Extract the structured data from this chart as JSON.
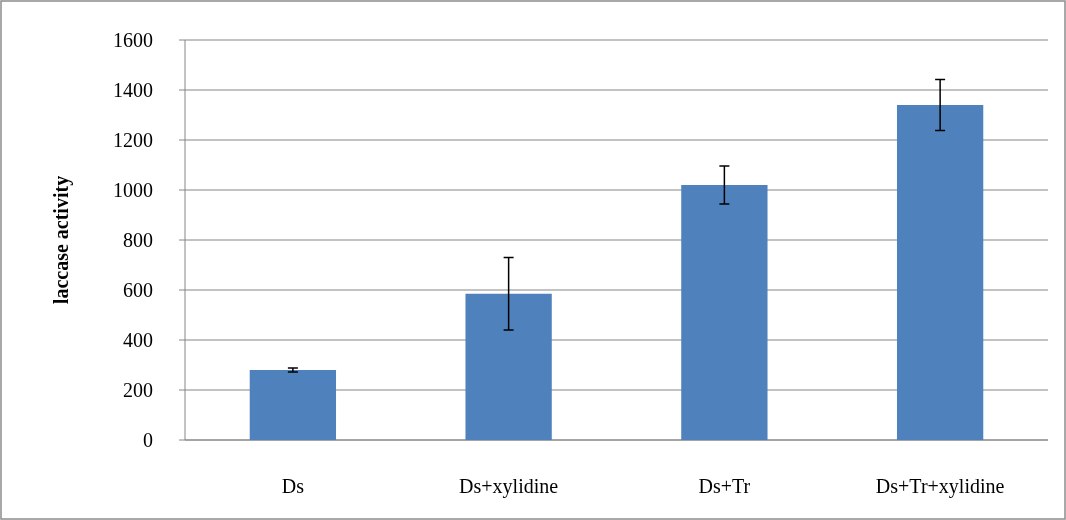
{
  "chart_data": {
    "type": "bar",
    "ylabel": "laccase activity",
    "categories": [
      "Ds",
      "Ds+xylidine",
      "Ds+Tr",
      "Ds+Tr+xylidine"
    ],
    "values": [
      280,
      585,
      1020,
      1340
    ],
    "errors": [
      8,
      145,
      76,
      102
    ],
    "color": "#4f81bd",
    "ylim": [
      0,
      1600
    ],
    "yticks": [
      0,
      200,
      400,
      600,
      800,
      1000,
      1200,
      1400,
      1600
    ],
    "grid": "y"
  }
}
